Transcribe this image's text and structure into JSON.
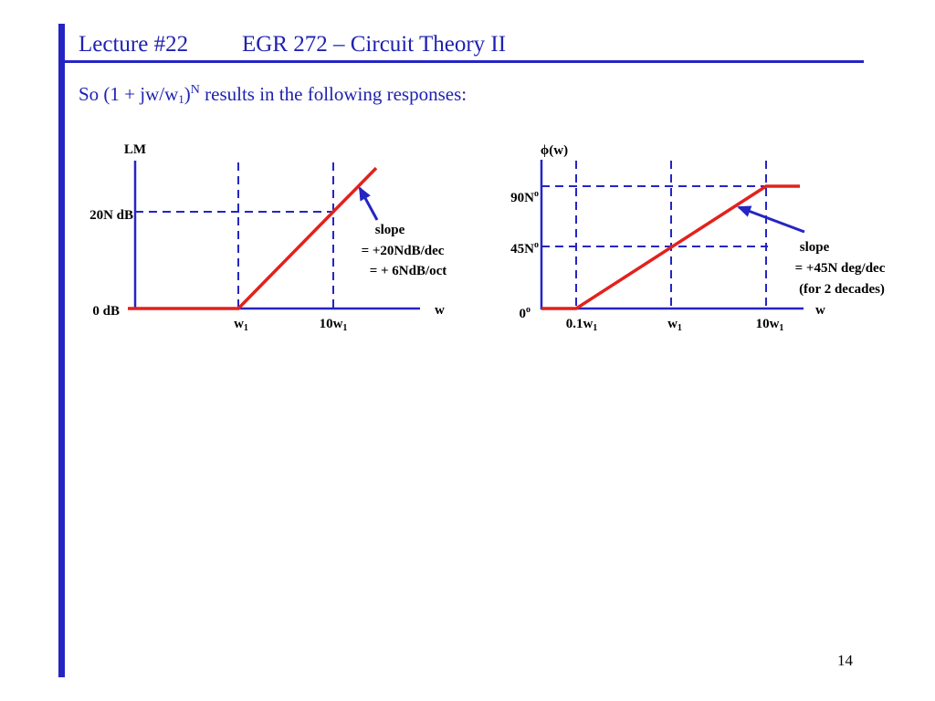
{
  "slide": {
    "lecture": "Lecture #22",
    "course": "EGR 272 – Circuit Theory II",
    "page_number": "14"
  },
  "subtitle": {
    "part1": "So (1 + jw/w",
    "sub": "1",
    "part2": ")",
    "sup": "N",
    "part3": " results in the following responses:"
  },
  "colors": {
    "accent": "#2525c4",
    "title": "#1f22b0",
    "response": "#e3211c"
  },
  "chart_data": [
    {
      "type": "line",
      "x_scale": "log",
      "grid": true,
      "ylabel": "LM",
      "xlabel": "w",
      "y_ticks": [
        {
          "text": "0 dB",
          "value": 0
        },
        {
          "text": "20N dB",
          "value": 20
        }
      ],
      "x_ticks": [
        {
          "text": "w",
          "sub": "1",
          "value": 1
        },
        {
          "text": "10w",
          "sub": "1",
          "value": 10
        }
      ],
      "series": [
        {
          "points": [
            [
              1,
              0
            ],
            [
              10,
              20
            ]
          ]
        }
      ],
      "annotation": [
        "slope",
        "= +20NdB/dec",
        "= + 6NdB/oct"
      ]
    },
    {
      "type": "line",
      "x_scale": "log",
      "grid": true,
      "ylabel": "ϕ(w)",
      "xlabel": "w",
      "y_ticks": [
        {
          "text": "0",
          "sup": "o",
          "value": 0
        },
        {
          "text": "45N",
          "sup": "o",
          "value": 45
        },
        {
          "text": "90N",
          "sup": "o",
          "value": 90
        }
      ],
      "x_ticks": [
        {
          "text": "0.1w",
          "sub": "1",
          "value": 0.1
        },
        {
          "text": "w",
          "sub": "1",
          "value": 1
        },
        {
          "text": "10w",
          "sub": "1",
          "value": 10
        }
      ],
      "series": [
        {
          "points": [
            [
              0.1,
              0
            ],
            [
              10,
              90
            ]
          ]
        }
      ],
      "annotation": [
        "slope",
        "= +45N deg/dec",
        "(for 2 decades)"
      ]
    }
  ]
}
